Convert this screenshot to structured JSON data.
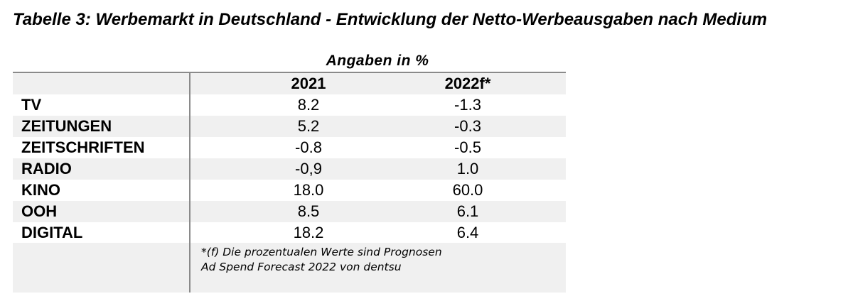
{
  "title": "Tabelle 3: Werbemarkt in Deutschland - Entwicklung der Netto-Werbeausgaben nach Medium",
  "subtitle": "Angaben in %",
  "columns": [
    "2021",
    "2022f*"
  ],
  "rows": [
    {
      "medium": "TV",
      "v2021": "8.2",
      "v2022": "-1.3"
    },
    {
      "medium": "ZEITUNGEN",
      "v2021": "5.2",
      "v2022": "-0.3"
    },
    {
      "medium": "ZEITSCHRIFTEN",
      "v2021": "-0.8",
      "v2022": "-0.5"
    },
    {
      "medium": "RADIO",
      "v2021": "-0,9",
      "v2022": "1.0"
    },
    {
      "medium": "KINO",
      "v2021": "18.0",
      "v2022": "60.0"
    },
    {
      "medium": "OOH",
      "v2021": "8.5",
      "v2022": "6.1"
    },
    {
      "medium": "DIGITAL",
      "v2021": "18.2",
      "v2022": "6.4"
    }
  ],
  "notes": [
    "*(f) Die prozentualen Werte sind Prognosen",
    "Ad Spend Forecast 2022 von dentsu"
  ]
}
